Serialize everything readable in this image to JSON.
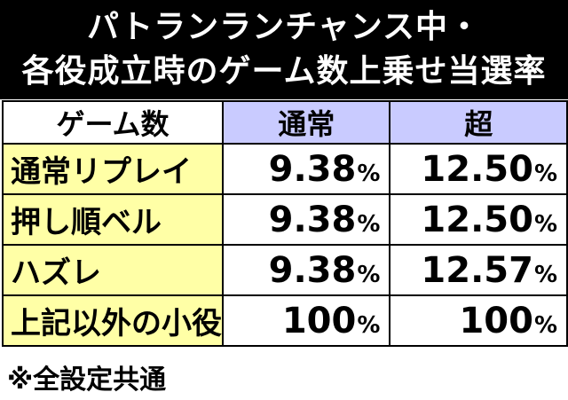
{
  "title": {
    "line1": "パトランランチャンス中・",
    "line2": "各役成立時のゲーム数上乗せ当選率"
  },
  "table": {
    "headers": [
      "ゲーム数",
      "通常",
      "超"
    ],
    "rows": [
      {
        "label": "通常リプレイ",
        "normal": "9.38",
        "super": "12.50"
      },
      {
        "label": "押し順ベル",
        "normal": "9.38",
        "super": "12.50"
      },
      {
        "label": "ハズレ",
        "normal": "9.38",
        "super": "12.57"
      },
      {
        "label": "上記以外の小役",
        "normal": "100",
        "super": "100"
      }
    ],
    "unit": "%"
  },
  "footnote": "※全設定共通",
  "colors": {
    "header_bg": "#c9cbff",
    "label_bg": "#ffffa6",
    "title_bg": "#000000"
  }
}
